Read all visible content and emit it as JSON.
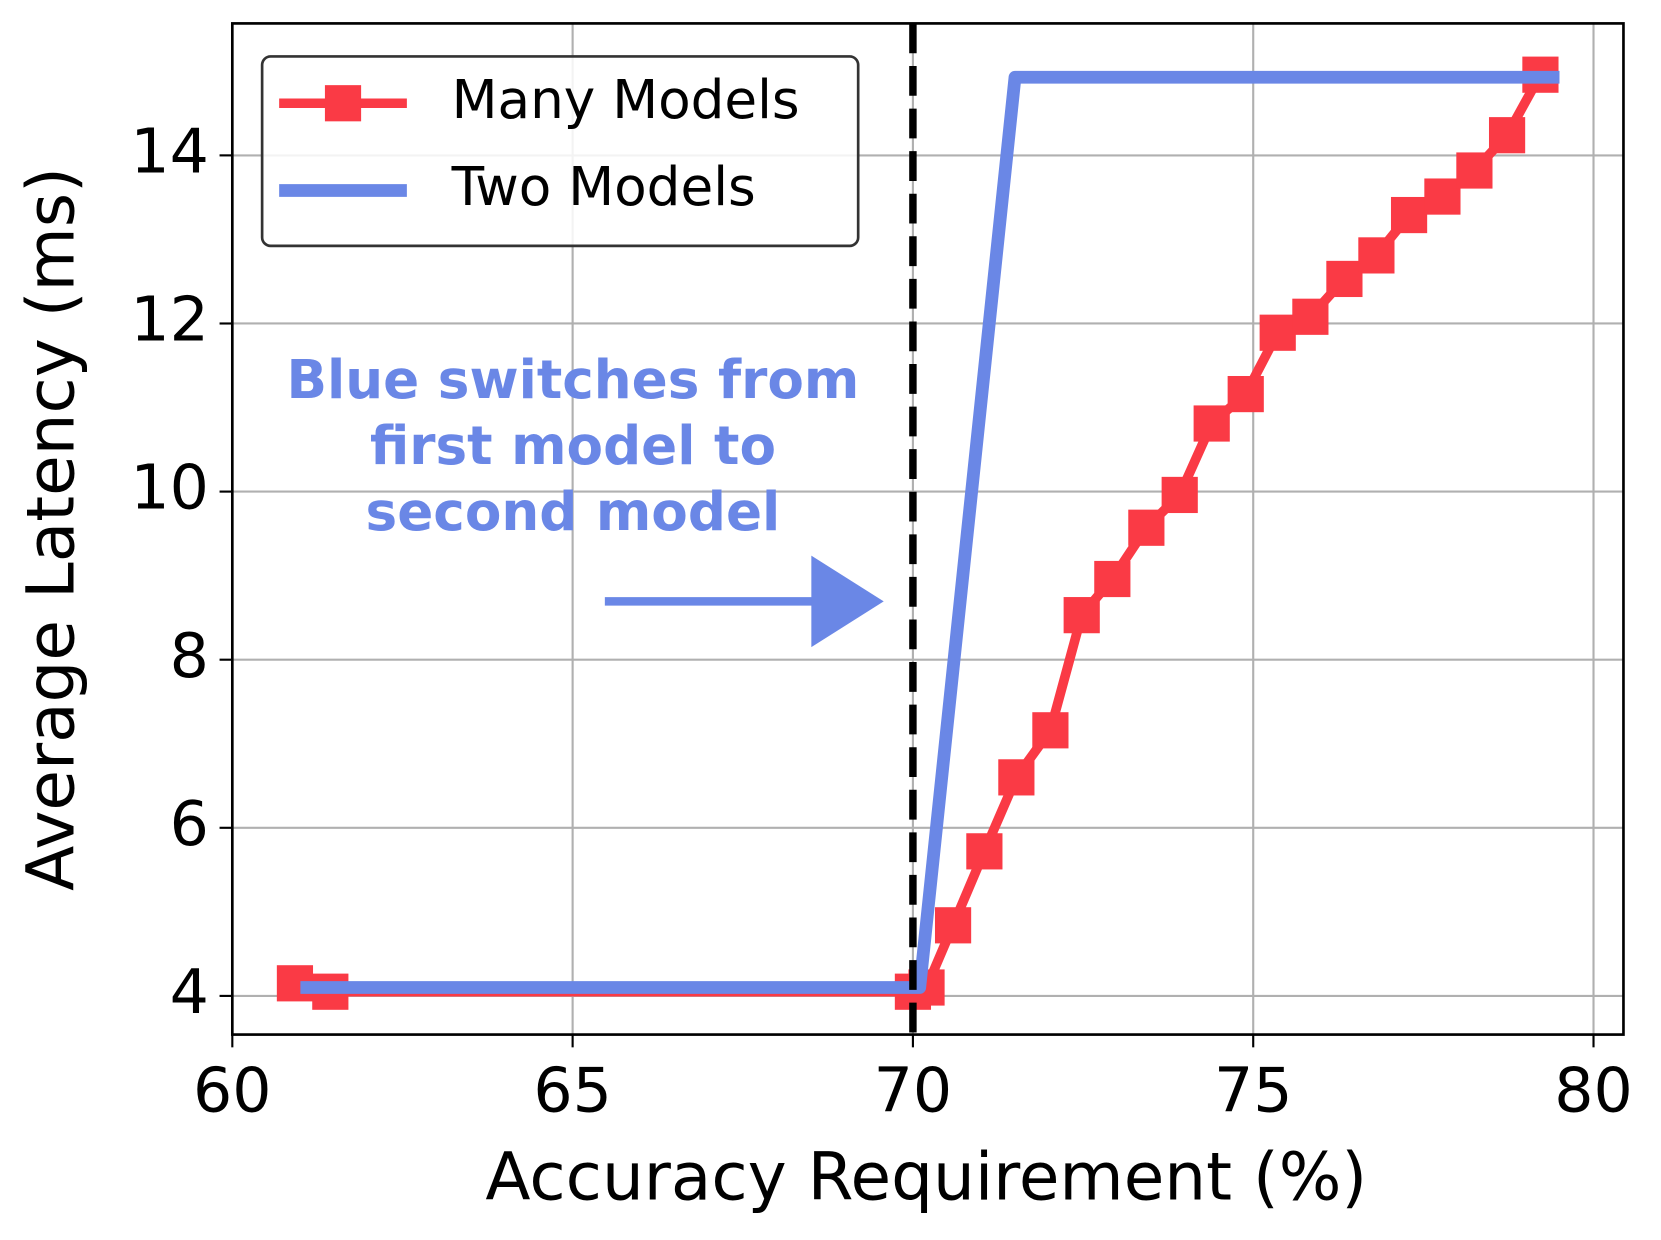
{
  "chart_data": {
    "type": "line",
    "xlabel": "Accuracy Requirement (%)",
    "ylabel": "Average Latency (ms)",
    "xlim": [
      60,
      80.44
    ],
    "ylim": [
      3.54,
      15.57
    ],
    "xticks": [
      60,
      65,
      70,
      75,
      80
    ],
    "yticks": [
      4,
      6,
      8,
      10,
      12,
      14
    ],
    "grid": true,
    "legend": "upper left",
    "vline": 70,
    "annotation": [
      "Blue switches from",
      "first model to",
      "second model"
    ],
    "annotation_color": "#6a87e6",
    "series": [
      {
        "name": "Many Models",
        "color": "#fa3a45",
        "marker": "square",
        "x": [
          60.92,
          61.44,
          70.0,
          70.2,
          70.59,
          71.05,
          71.52,
          72.02,
          72.48,
          72.93,
          73.43,
          73.92,
          74.39,
          74.89,
          75.36,
          75.84,
          76.34,
          76.81,
          77.29,
          77.78,
          78.25,
          78.73,
          79.22
        ],
        "values": [
          4.15,
          4.05,
          4.05,
          4.1,
          4.84,
          5.72,
          6.6,
          7.16,
          8.53,
          8.96,
          9.57,
          9.96,
          10.81,
          11.16,
          11.89,
          12.08,
          12.53,
          12.81,
          13.29,
          13.51,
          13.82,
          14.24,
          14.96
        ]
      },
      {
        "name": "Two Models",
        "color": "#6a87e6",
        "marker": "none",
        "x": [
          61.0,
          70.1,
          71.5,
          79.5
        ],
        "values": [
          4.1,
          4.1,
          14.93,
          14.93
        ]
      }
    ]
  }
}
